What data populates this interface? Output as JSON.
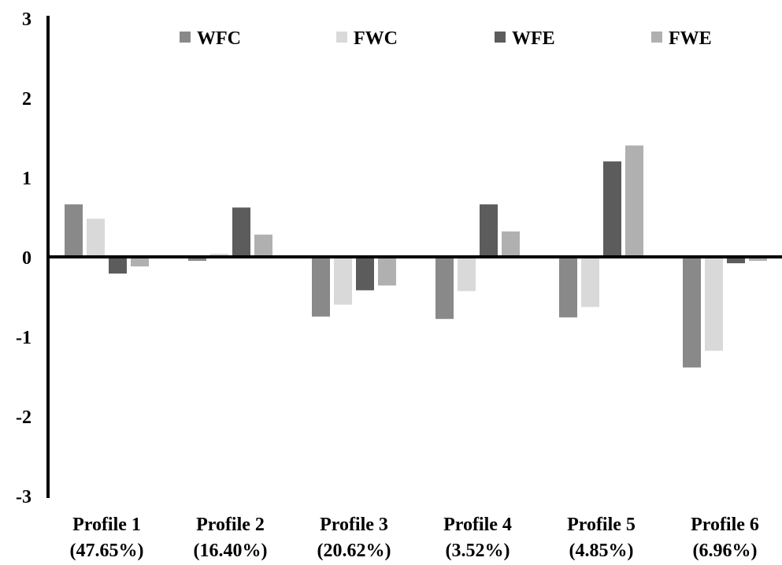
{
  "chart_data": {
    "type": "bar",
    "title": "",
    "xlabel": "",
    "ylabel": "",
    "ylim": [
      -3,
      3
    ],
    "yticks": [
      "3",
      "2",
      "1",
      "0",
      "-1",
      "-2",
      "-3"
    ],
    "categories": [
      [
        "Profile 1",
        "(47.65%)"
      ],
      [
        "Profile 2",
        "(16.40%)"
      ],
      [
        "Profile 3",
        "(20.62%)"
      ],
      [
        "Profile 4",
        "(3.52%)"
      ],
      [
        "Profile 5",
        "(4.85%)"
      ],
      [
        "Profile 6",
        "(6.96%)"
      ]
    ],
    "series": [
      {
        "name": "WFC",
        "color": "#898989",
        "values": [
          0.67,
          -0.04,
          -0.74,
          -0.77,
          -0.75,
          -1.38
        ]
      },
      {
        "name": "FWC",
        "color": "#d9d9d9",
        "values": [
          0.49,
          0.05,
          -0.59,
          -0.42,
          -0.62,
          -1.17
        ]
      },
      {
        "name": "WFE",
        "color": "#5c5c5c",
        "values": [
          -0.2,
          0.63,
          -0.41,
          0.67,
          1.21,
          -0.07
        ]
      },
      {
        "name": "FWE",
        "color": "#b0b0b0",
        "values": [
          -0.11,
          0.29,
          -0.35,
          0.33,
          1.41,
          -0.04
        ]
      }
    ],
    "grid": false,
    "legend": "top"
  }
}
